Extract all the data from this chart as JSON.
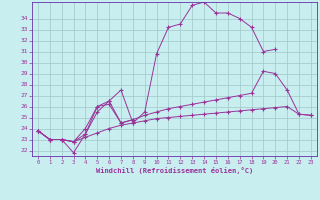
{
  "bg_color": "#c8eef0",
  "line_color": "#993399",
  "grid_color": "#a0c8c8",
  "spine_color": "#6633aa",
  "xlim": [
    -0.5,
    23.5
  ],
  "ylim": [
    21.5,
    35.5
  ],
  "xticks": [
    0,
    1,
    2,
    3,
    4,
    5,
    6,
    7,
    8,
    9,
    10,
    11,
    12,
    13,
    14,
    15,
    16,
    17,
    18,
    19,
    20,
    21,
    22,
    23
  ],
  "yticks": [
    22,
    23,
    24,
    25,
    26,
    27,
    28,
    29,
    30,
    31,
    32,
    33,
    34
  ],
  "xlabel": "Windchill (Refroidissement éolien,°C)",
  "series": [
    {
      "x": [
        0,
        1,
        2,
        3,
        4,
        5,
        6,
        7,
        8,
        9,
        10,
        11,
        12,
        13,
        14,
        15,
        16,
        17,
        18,
        19,
        20,
        21,
        22,
        23
      ],
      "y": [
        23.8,
        23.0,
        23.0,
        22.8,
        23.2,
        23.6,
        24.0,
        24.3,
        24.5,
        24.7,
        24.9,
        25.0,
        25.1,
        25.2,
        25.3,
        25.4,
        25.5,
        25.6,
        25.7,
        25.8,
        25.9,
        26.0,
        25.3,
        25.2
      ]
    },
    {
      "x": [
        0,
        1,
        2,
        3,
        4,
        5,
        6,
        7,
        8,
        9,
        10,
        11,
        12,
        13,
        14,
        15,
        16,
        17,
        18,
        19,
        20,
        21,
        22,
        23
      ],
      "y": [
        23.8,
        23.0,
        23.0,
        22.8,
        23.5,
        25.5,
        26.5,
        24.5,
        24.8,
        25.2,
        25.5,
        25.8,
        26.0,
        26.2,
        26.4,
        26.6,
        26.8,
        27.0,
        27.2,
        29.2,
        29.0,
        27.5,
        25.3,
        25.2
      ]
    },
    {
      "x": [
        0,
        1,
        2,
        3,
        4,
        5,
        6,
        7,
        8,
        9,
        10,
        11,
        12,
        13,
        14,
        15,
        16,
        17,
        18,
        19,
        20
      ],
      "y": [
        23.8,
        23.0,
        23.0,
        22.8,
        24.0,
        26.0,
        26.5,
        27.5,
        24.5,
        25.5,
        30.8,
        33.2,
        33.5,
        35.2,
        35.5,
        34.5,
        34.5,
        34.0,
        33.2,
        31.0,
        31.2
      ]
    },
    {
      "x": [
        0,
        1,
        2,
        3,
        4,
        5,
        6,
        7,
        8
      ],
      "y": [
        23.8,
        23.0,
        23.0,
        21.8,
        23.5,
        26.0,
        26.2,
        24.5,
        24.8
      ]
    }
  ]
}
